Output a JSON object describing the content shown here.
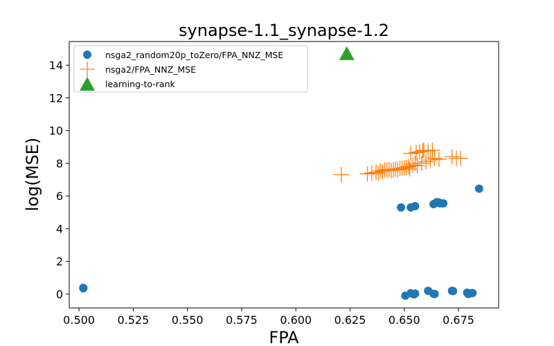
{
  "chart_data": {
    "type": "scatter",
    "title": "synapse-1.1_synapse-1.2",
    "xlabel": "FPA",
    "ylabel": "log(MSE)",
    "xlim": [
      0.4955,
      0.6935
    ],
    "ylim": [
      -0.85,
      15.45
    ],
    "xticks": [
      0.5,
      0.525,
      0.55,
      0.575,
      0.6,
      0.625,
      0.65,
      0.675
    ],
    "xtick_labels": [
      "0.500",
      "0.525",
      "0.550",
      "0.575",
      "0.600",
      "0.625",
      "0.650",
      "0.675"
    ],
    "yticks": [
      0,
      2,
      4,
      6,
      8,
      10,
      12,
      14
    ],
    "ytick_labels": [
      "0",
      "2",
      "4",
      "6",
      "8",
      "10",
      "12",
      "14"
    ],
    "grid": false,
    "legend_position": "top-left",
    "series": [
      {
        "name": "nsga2_random20p_toZero/FPA_NNZ_MSE",
        "marker": "circle",
        "color": "#1f77b4",
        "points": [
          [
            0.502,
            0.35
          ],
          [
            0.502,
            0.38
          ],
          [
            0.6485,
            5.3
          ],
          [
            0.653,
            5.3
          ],
          [
            0.655,
            5.38
          ],
          [
            0.6635,
            5.5
          ],
          [
            0.665,
            5.62
          ],
          [
            0.6665,
            5.55
          ],
          [
            0.668,
            5.55
          ],
          [
            0.666,
            5.6
          ],
          [
            0.6845,
            6.45
          ],
          [
            0.6505,
            -0.1
          ],
          [
            0.653,
            0.05
          ],
          [
            0.6545,
            -0.02
          ],
          [
            0.655,
            0.03
          ],
          [
            0.661,
            0.2
          ],
          [
            0.6635,
            0.02
          ],
          [
            0.664,
            0.0
          ],
          [
            0.672,
            0.2
          ],
          [
            0.6725,
            0.18
          ],
          [
            0.679,
            0.08
          ],
          [
            0.6795,
            0.0
          ],
          [
            0.6805,
            0.05
          ],
          [
            0.6815,
            0.06
          ]
        ]
      },
      {
        "name": "nsga2/FPA_NNZ_MSE",
        "marker": "plus",
        "color": "#ff7f0e",
        "points": [
          [
            0.621,
            7.3
          ],
          [
            0.633,
            7.35
          ],
          [
            0.635,
            7.4
          ],
          [
            0.637,
            7.45
          ],
          [
            0.638,
            7.4
          ],
          [
            0.639,
            7.55
          ],
          [
            0.64,
            7.5
          ],
          [
            0.641,
            7.6
          ],
          [
            0.642,
            7.58
          ],
          [
            0.643,
            7.62
          ],
          [
            0.644,
            7.55
          ],
          [
            0.645,
            7.6
          ],
          [
            0.646,
            7.65
          ],
          [
            0.647,
            7.6
          ],
          [
            0.648,
            7.68
          ],
          [
            0.649,
            7.7
          ],
          [
            0.65,
            7.72
          ],
          [
            0.651,
            7.75
          ],
          [
            0.652,
            7.8
          ],
          [
            0.6525,
            7.65
          ],
          [
            0.653,
            8.6
          ],
          [
            0.654,
            7.9
          ],
          [
            0.655,
            8.0
          ],
          [
            0.6555,
            8.65
          ],
          [
            0.656,
            7.85
          ],
          [
            0.657,
            8.7
          ],
          [
            0.658,
            8.0
          ],
          [
            0.6585,
            8.75
          ],
          [
            0.659,
            8.8
          ],
          [
            0.66,
            8.1
          ],
          [
            0.661,
            8.75
          ],
          [
            0.662,
            8.2
          ],
          [
            0.663,
            8.8
          ],
          [
            0.664,
            8.3
          ],
          [
            0.666,
            8.25
          ],
          [
            0.672,
            8.4
          ],
          [
            0.674,
            8.3
          ],
          [
            0.676,
            8.3
          ]
        ]
      },
      {
        "name": "learning-to-rank",
        "marker": "triangle",
        "color": "#2ca02c",
        "points": [
          [
            0.6235,
            14.65
          ]
        ]
      }
    ]
  }
}
